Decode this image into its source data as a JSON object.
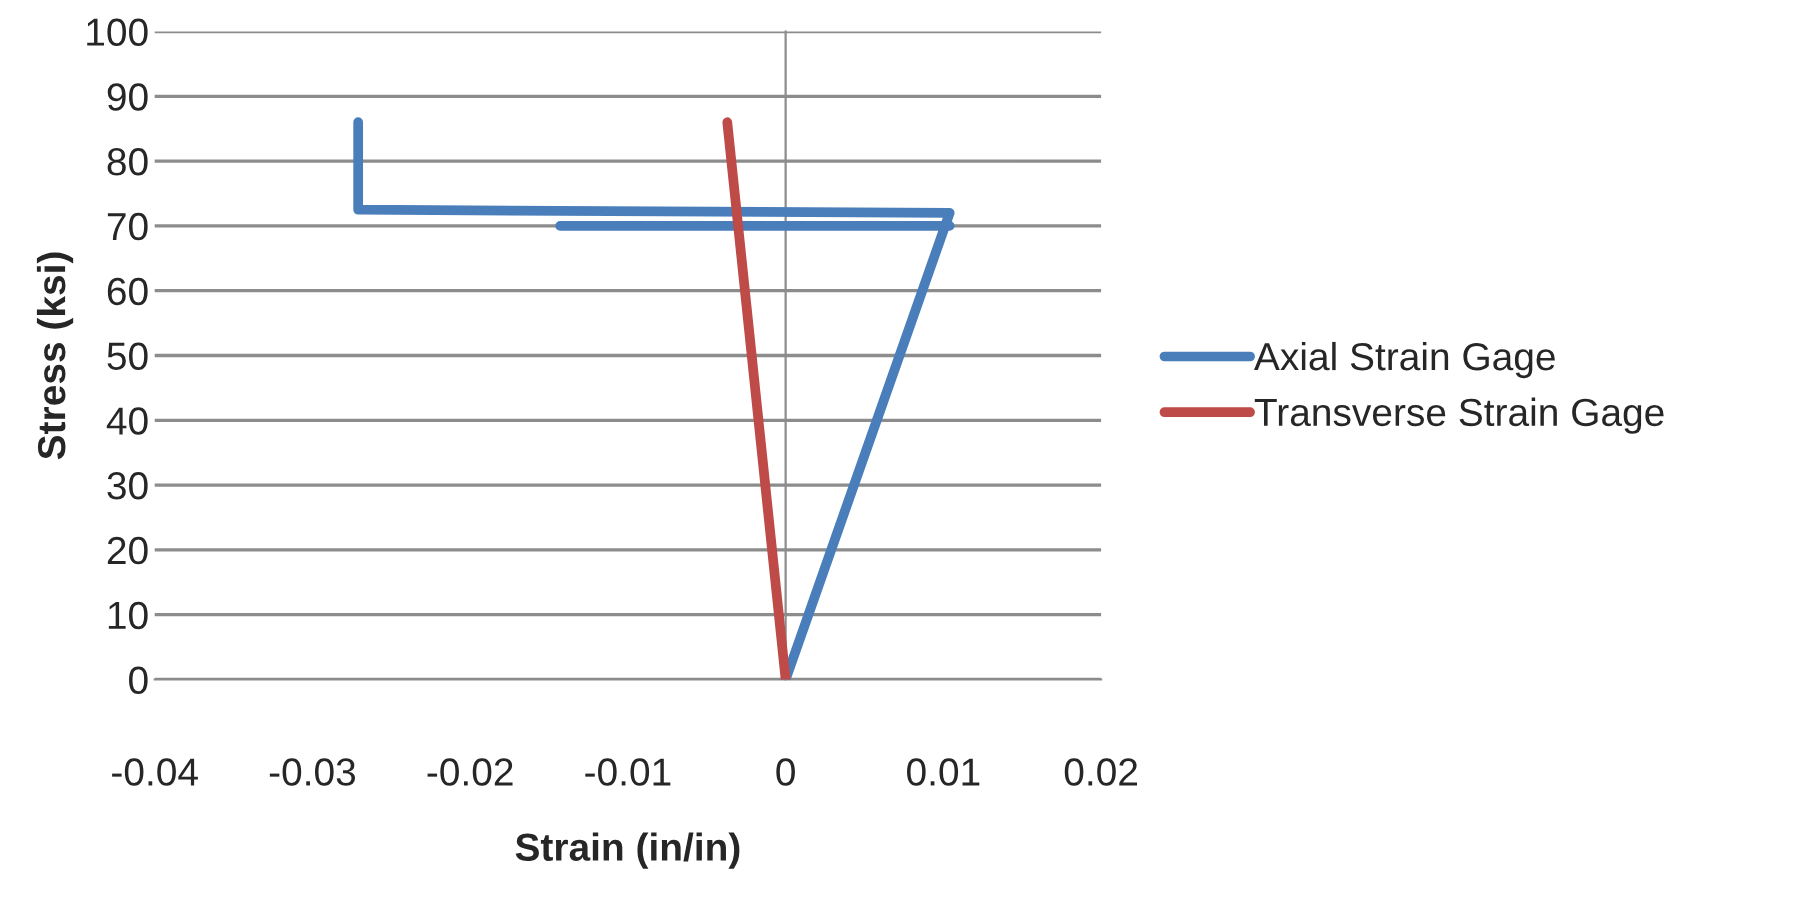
{
  "chart_data": {
    "type": "line",
    "xlabel": "Strain (in/in)",
    "ylabel": "Stress (ksi)",
    "xlim": [
      -0.04,
      0.02
    ],
    "xticks": [
      -0.04,
      -0.03,
      -0.02,
      -0.01,
      0,
      0.01,
      0.02
    ],
    "ylim": [
      0,
      100
    ],
    "yticks": [
      0,
      10,
      20,
      30,
      40,
      50,
      60,
      70,
      80,
      90,
      100
    ],
    "grid": "y",
    "legend": "right",
    "marker": "none",
    "line_style": "solid",
    "series": [
      {
        "name": "Axial Strain Gage",
        "color": "#4a7ebb",
        "x": [
          0,
          0.0104,
          -0.0271,
          -0.0271,
          null,
          -0.0143,
          0.0104
        ],
        "values": [
          0,
          72,
          72.5,
          86,
          null,
          70,
          70
        ]
      },
      {
        "name": "Transverse Strain Gage",
        "color": "#be4b48",
        "x": [
          0,
          -0.0037
        ],
        "values": [
          0,
          86
        ]
      }
    ]
  }
}
